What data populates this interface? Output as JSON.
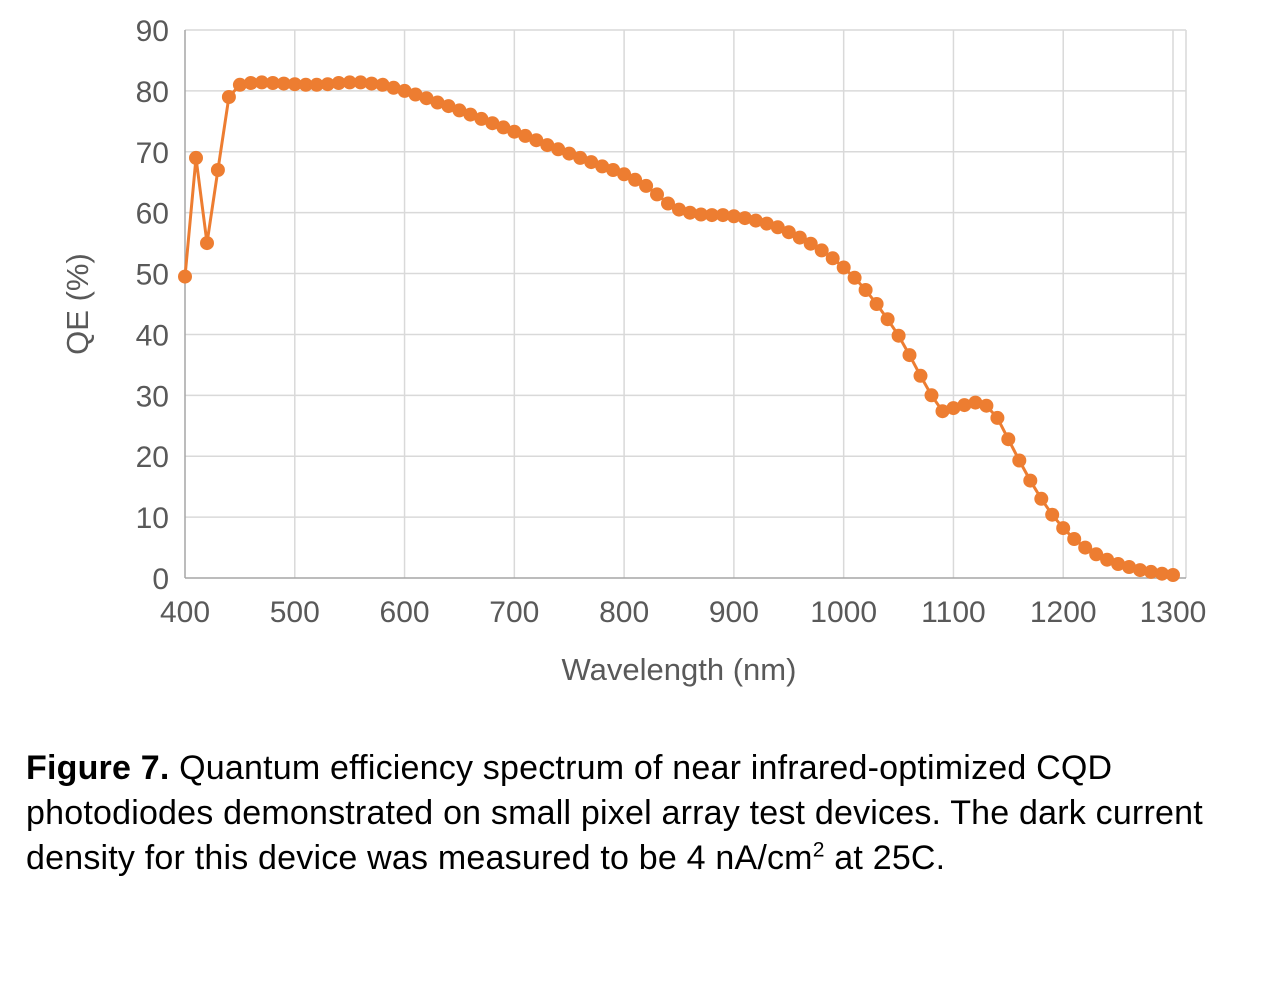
{
  "caption": {
    "label": "Figure 7.",
    "body": " Quantum efficiency spectrum of near infrared-optimized CQD photodiodes demonstrated on small pixel array test devices. The dark current density for this device was measured to be 4 nA/cm",
    "superscript": "2",
    "tail": " at 25C."
  },
  "chart_data": {
    "type": "line",
    "title": "",
    "xlabel": "Wavelength (nm)",
    "ylabel": "QE (%)",
    "xlim": [
      400,
      1300
    ],
    "ylim": [
      0,
      90
    ],
    "x_ticks": [
      400,
      500,
      600,
      700,
      800,
      900,
      1000,
      1100,
      1200,
      1300
    ],
    "y_ticks": [
      0,
      10,
      20,
      30,
      40,
      50,
      60,
      70,
      80,
      90
    ],
    "grid": true,
    "legend": false,
    "marker_color": "#ED7D31",
    "grid_color": "#D9D9D9",
    "axis_color": "#A6A6A6",
    "tick_color": "#595959",
    "series": [
      {
        "name": "QE",
        "color": "#ED7D31",
        "x": [
          400,
          410,
          420,
          430,
          440,
          450,
          460,
          470,
          480,
          490,
          500,
          510,
          520,
          530,
          540,
          550,
          560,
          570,
          580,
          590,
          600,
          610,
          620,
          630,
          640,
          650,
          660,
          670,
          680,
          690,
          700,
          710,
          720,
          730,
          740,
          750,
          760,
          770,
          780,
          790,
          800,
          810,
          820,
          830,
          840,
          850,
          860,
          870,
          880,
          890,
          900,
          910,
          920,
          930,
          940,
          950,
          960,
          970,
          980,
          990,
          1000,
          1010,
          1020,
          1030,
          1040,
          1050,
          1060,
          1070,
          1080,
          1090,
          1100,
          1110,
          1120,
          1130,
          1140,
          1150,
          1160,
          1170,
          1180,
          1190,
          1200,
          1210,
          1220,
          1230,
          1240,
          1250,
          1260,
          1270,
          1280,
          1290,
          1300
        ],
        "y": [
          49.5,
          69,
          55,
          67,
          79,
          81,
          81.3,
          81.4,
          81.3,
          81.2,
          81.1,
          81,
          81,
          81.1,
          81.3,
          81.4,
          81.4,
          81.2,
          81,
          80.5,
          80,
          79.4,
          78.8,
          78.1,
          77.5,
          76.8,
          76.1,
          75.4,
          74.7,
          74,
          73.3,
          72.6,
          71.9,
          71.1,
          70.4,
          69.7,
          69,
          68.3,
          67.6,
          67,
          66.3,
          65.4,
          64.4,
          63,
          61.5,
          60.5,
          60,
          59.7,
          59.6,
          59.6,
          59.4,
          59.1,
          58.7,
          58.2,
          57.6,
          56.8,
          55.9,
          54.9,
          53.8,
          52.5,
          51,
          49.3,
          47.3,
          45,
          42.5,
          39.8,
          36.6,
          33.2,
          30,
          27.4,
          27.9,
          28.4,
          28.8,
          28.3,
          26.3,
          22.8,
          19.3,
          16,
          13,
          10.4,
          8.2,
          6.4,
          5,
          3.9,
          3,
          2.3,
          1.8,
          1.3,
          1,
          0.7,
          0.5
        ]
      }
    ]
  }
}
